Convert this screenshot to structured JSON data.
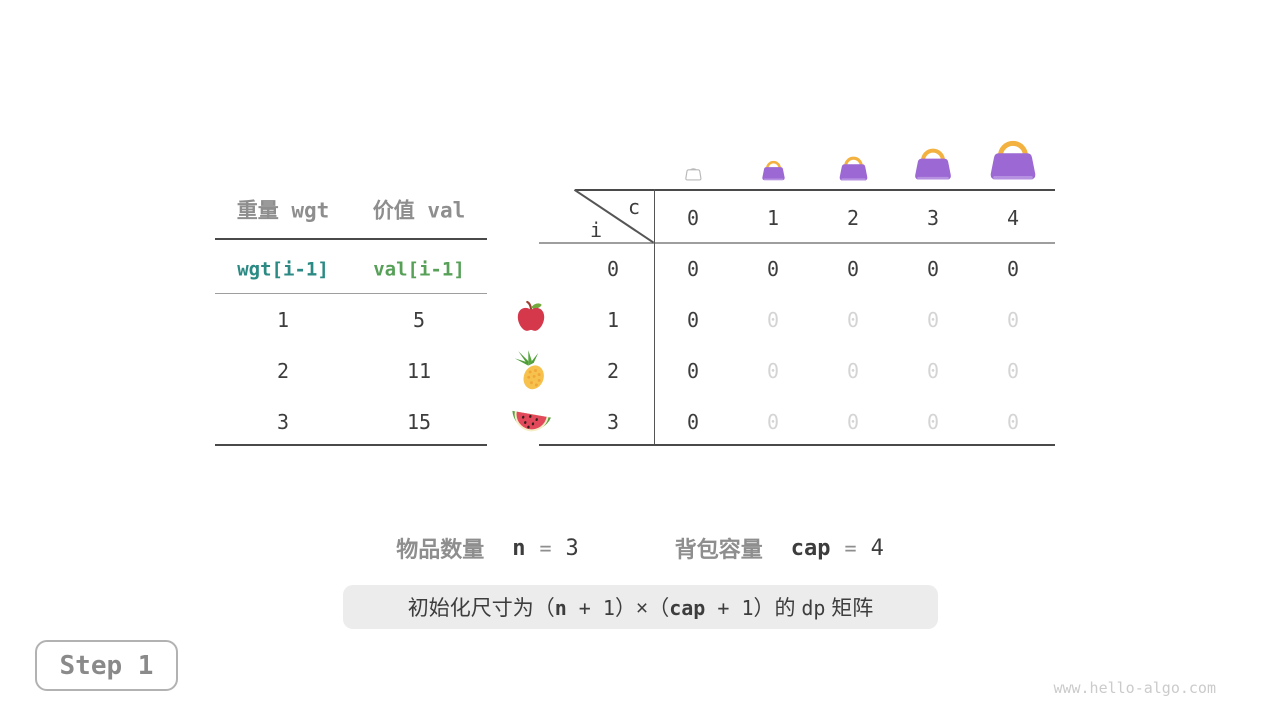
{
  "item_table": {
    "col_headers": [
      "重量 wgt",
      "价值 val"
    ],
    "code_row": {
      "wgt": "wgt[i-1]",
      "val": "val[i-1]"
    },
    "rows": [
      {
        "wgt": "1",
        "val": "5",
        "fruit": "apple"
      },
      {
        "wgt": "2",
        "val": "11",
        "fruit": "pineapple"
      },
      {
        "wgt": "3",
        "val": "15",
        "fruit": "watermelon"
      }
    ]
  },
  "dp_matrix": {
    "corner": {
      "col_var": "c",
      "row_var": "i"
    },
    "col_headers": [
      "0",
      "1",
      "2",
      "3",
      "4"
    ],
    "bags": [
      {
        "capacity": 0,
        "style": "empty"
      },
      {
        "capacity": 1,
        "style": "filled"
      },
      {
        "capacity": 2,
        "style": "filled"
      },
      {
        "capacity": 3,
        "style": "filled"
      },
      {
        "capacity": 4,
        "style": "filled"
      }
    ],
    "rows": [
      {
        "label": "0",
        "cells": [
          {
            "value": "0",
            "dim": false
          },
          {
            "value": "0",
            "dim": false
          },
          {
            "value": "0",
            "dim": false
          },
          {
            "value": "0",
            "dim": false
          },
          {
            "value": "0",
            "dim": false
          }
        ]
      },
      {
        "label": "1",
        "cells": [
          {
            "value": "0",
            "dim": false
          },
          {
            "value": "0",
            "dim": true
          },
          {
            "value": "0",
            "dim": true
          },
          {
            "value": "0",
            "dim": true
          },
          {
            "value": "0",
            "dim": true
          }
        ]
      },
      {
        "label": "2",
        "cells": [
          {
            "value": "0",
            "dim": false
          },
          {
            "value": "0",
            "dim": true
          },
          {
            "value": "0",
            "dim": true
          },
          {
            "value": "0",
            "dim": true
          },
          {
            "value": "0",
            "dim": true
          }
        ]
      },
      {
        "label": "3",
        "cells": [
          {
            "value": "0",
            "dim": false
          },
          {
            "value": "0",
            "dim": true
          },
          {
            "value": "0",
            "dim": true
          },
          {
            "value": "0",
            "dim": true
          },
          {
            "value": "0",
            "dim": true
          }
        ]
      }
    ]
  },
  "info": {
    "item_count": {
      "label": "物品数量",
      "var": "n",
      "op": "=",
      "value": "3"
    },
    "capacity": {
      "label": "背包容量",
      "var": "cap",
      "op": "=",
      "value": "4"
    }
  },
  "caption": {
    "segments": [
      {
        "text": "初始化尺寸为（",
        "style": "cn"
      },
      {
        "text": "n",
        "style": "code-bold"
      },
      {
        "text": " + 1",
        "style": "code"
      },
      {
        "text": "）×（",
        "style": "cn"
      },
      {
        "text": "cap",
        "style": "code-bold"
      },
      {
        "text": " + 1",
        "style": "code"
      },
      {
        "text": "）的 ",
        "style": "cn"
      },
      {
        "text": "dp",
        "style": "code"
      },
      {
        "text": " 矩阵",
        "style": "cn"
      }
    ]
  },
  "step_button": {
    "label": "Step 1"
  },
  "watermark": "www.hello-algo.com",
  "colors": {
    "teal": "#2b8a84",
    "green": "#57a058",
    "purple": "#9c68d3",
    "purple_light": "#b691e1",
    "orange": "#f3b13f",
    "dark_text": "#3d3d3d",
    "gray_text": "#8e8e8e",
    "dim_text": "#d4d4d4",
    "caption_bg": "#ececec"
  }
}
